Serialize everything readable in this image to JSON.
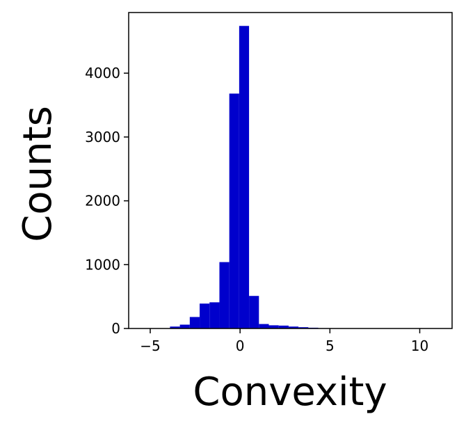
{
  "chart_data": {
    "type": "bar",
    "subtype": "histogram",
    "title": "",
    "xlabel": "Convexity",
    "ylabel": "Counts",
    "xlim": [
      -6.2,
      11.8
    ],
    "ylim": [
      0,
      4950
    ],
    "xticks": [
      -5,
      0,
      5,
      10
    ],
    "xtick_labels": [
      "−5",
      "0",
      "5",
      "10"
    ],
    "yticks": [
      0,
      1000,
      2000,
      3000,
      4000
    ],
    "ytick_labels": [
      "0",
      "1000",
      "2000",
      "3000",
      "4000"
    ],
    "grid": false,
    "legend": null,
    "bar_color": "#0000cc",
    "bins": [
      {
        "x0": -5.0,
        "x1": -4.45,
        "value": 2
      },
      {
        "x0": -4.45,
        "x1": -3.9,
        "value": 5
      },
      {
        "x0": -3.9,
        "x1": -3.35,
        "value": 30
      },
      {
        "x0": -3.35,
        "x1": -2.8,
        "value": 60
      },
      {
        "x0": -2.8,
        "x1": -2.25,
        "value": 180
      },
      {
        "x0": -2.25,
        "x1": -1.7,
        "value": 390
      },
      {
        "x0": -1.7,
        "x1": -1.15,
        "value": 410
      },
      {
        "x0": -1.15,
        "x1": -0.6,
        "value": 1040
      },
      {
        "x0": -0.6,
        "x1": -0.05,
        "value": 3680
      },
      {
        "x0": -0.05,
        "x1": 0.5,
        "value": 4740
      },
      {
        "x0": 0.5,
        "x1": 1.05,
        "value": 510
      },
      {
        "x0": 1.05,
        "x1": 1.6,
        "value": 70
      },
      {
        "x0": 1.6,
        "x1": 2.15,
        "value": 50
      },
      {
        "x0": 2.15,
        "x1": 2.7,
        "value": 45
      },
      {
        "x0": 2.7,
        "x1": 3.25,
        "value": 30
      },
      {
        "x0": 3.25,
        "x1": 3.8,
        "value": 20
      },
      {
        "x0": 3.8,
        "x1": 4.35,
        "value": 12
      },
      {
        "x0": 4.35,
        "x1": 4.9,
        "value": 6
      },
      {
        "x0": 4.9,
        "x1": 5.45,
        "value": 4
      },
      {
        "x0": 5.45,
        "x1": 6.0,
        "value": 3
      },
      {
        "x0": 6.0,
        "x1": 6.55,
        "value": 2
      },
      {
        "x0": 6.55,
        "x1": 7.1,
        "value": 2
      },
      {
        "x0": 7.1,
        "x1": 7.65,
        "value": 1
      },
      {
        "x0": 7.65,
        "x1": 8.2,
        "value": 1
      },
      {
        "x0": 8.2,
        "x1": 8.75,
        "value": 1
      },
      {
        "x0": 8.75,
        "x1": 9.3,
        "value": 1
      },
      {
        "x0": 9.3,
        "x1": 9.85,
        "value": 1
      },
      {
        "x0": 9.85,
        "x1": 10.4,
        "value": 1
      },
      {
        "x0": 10.4,
        "x1": 10.95,
        "value": 1
      }
    ]
  }
}
